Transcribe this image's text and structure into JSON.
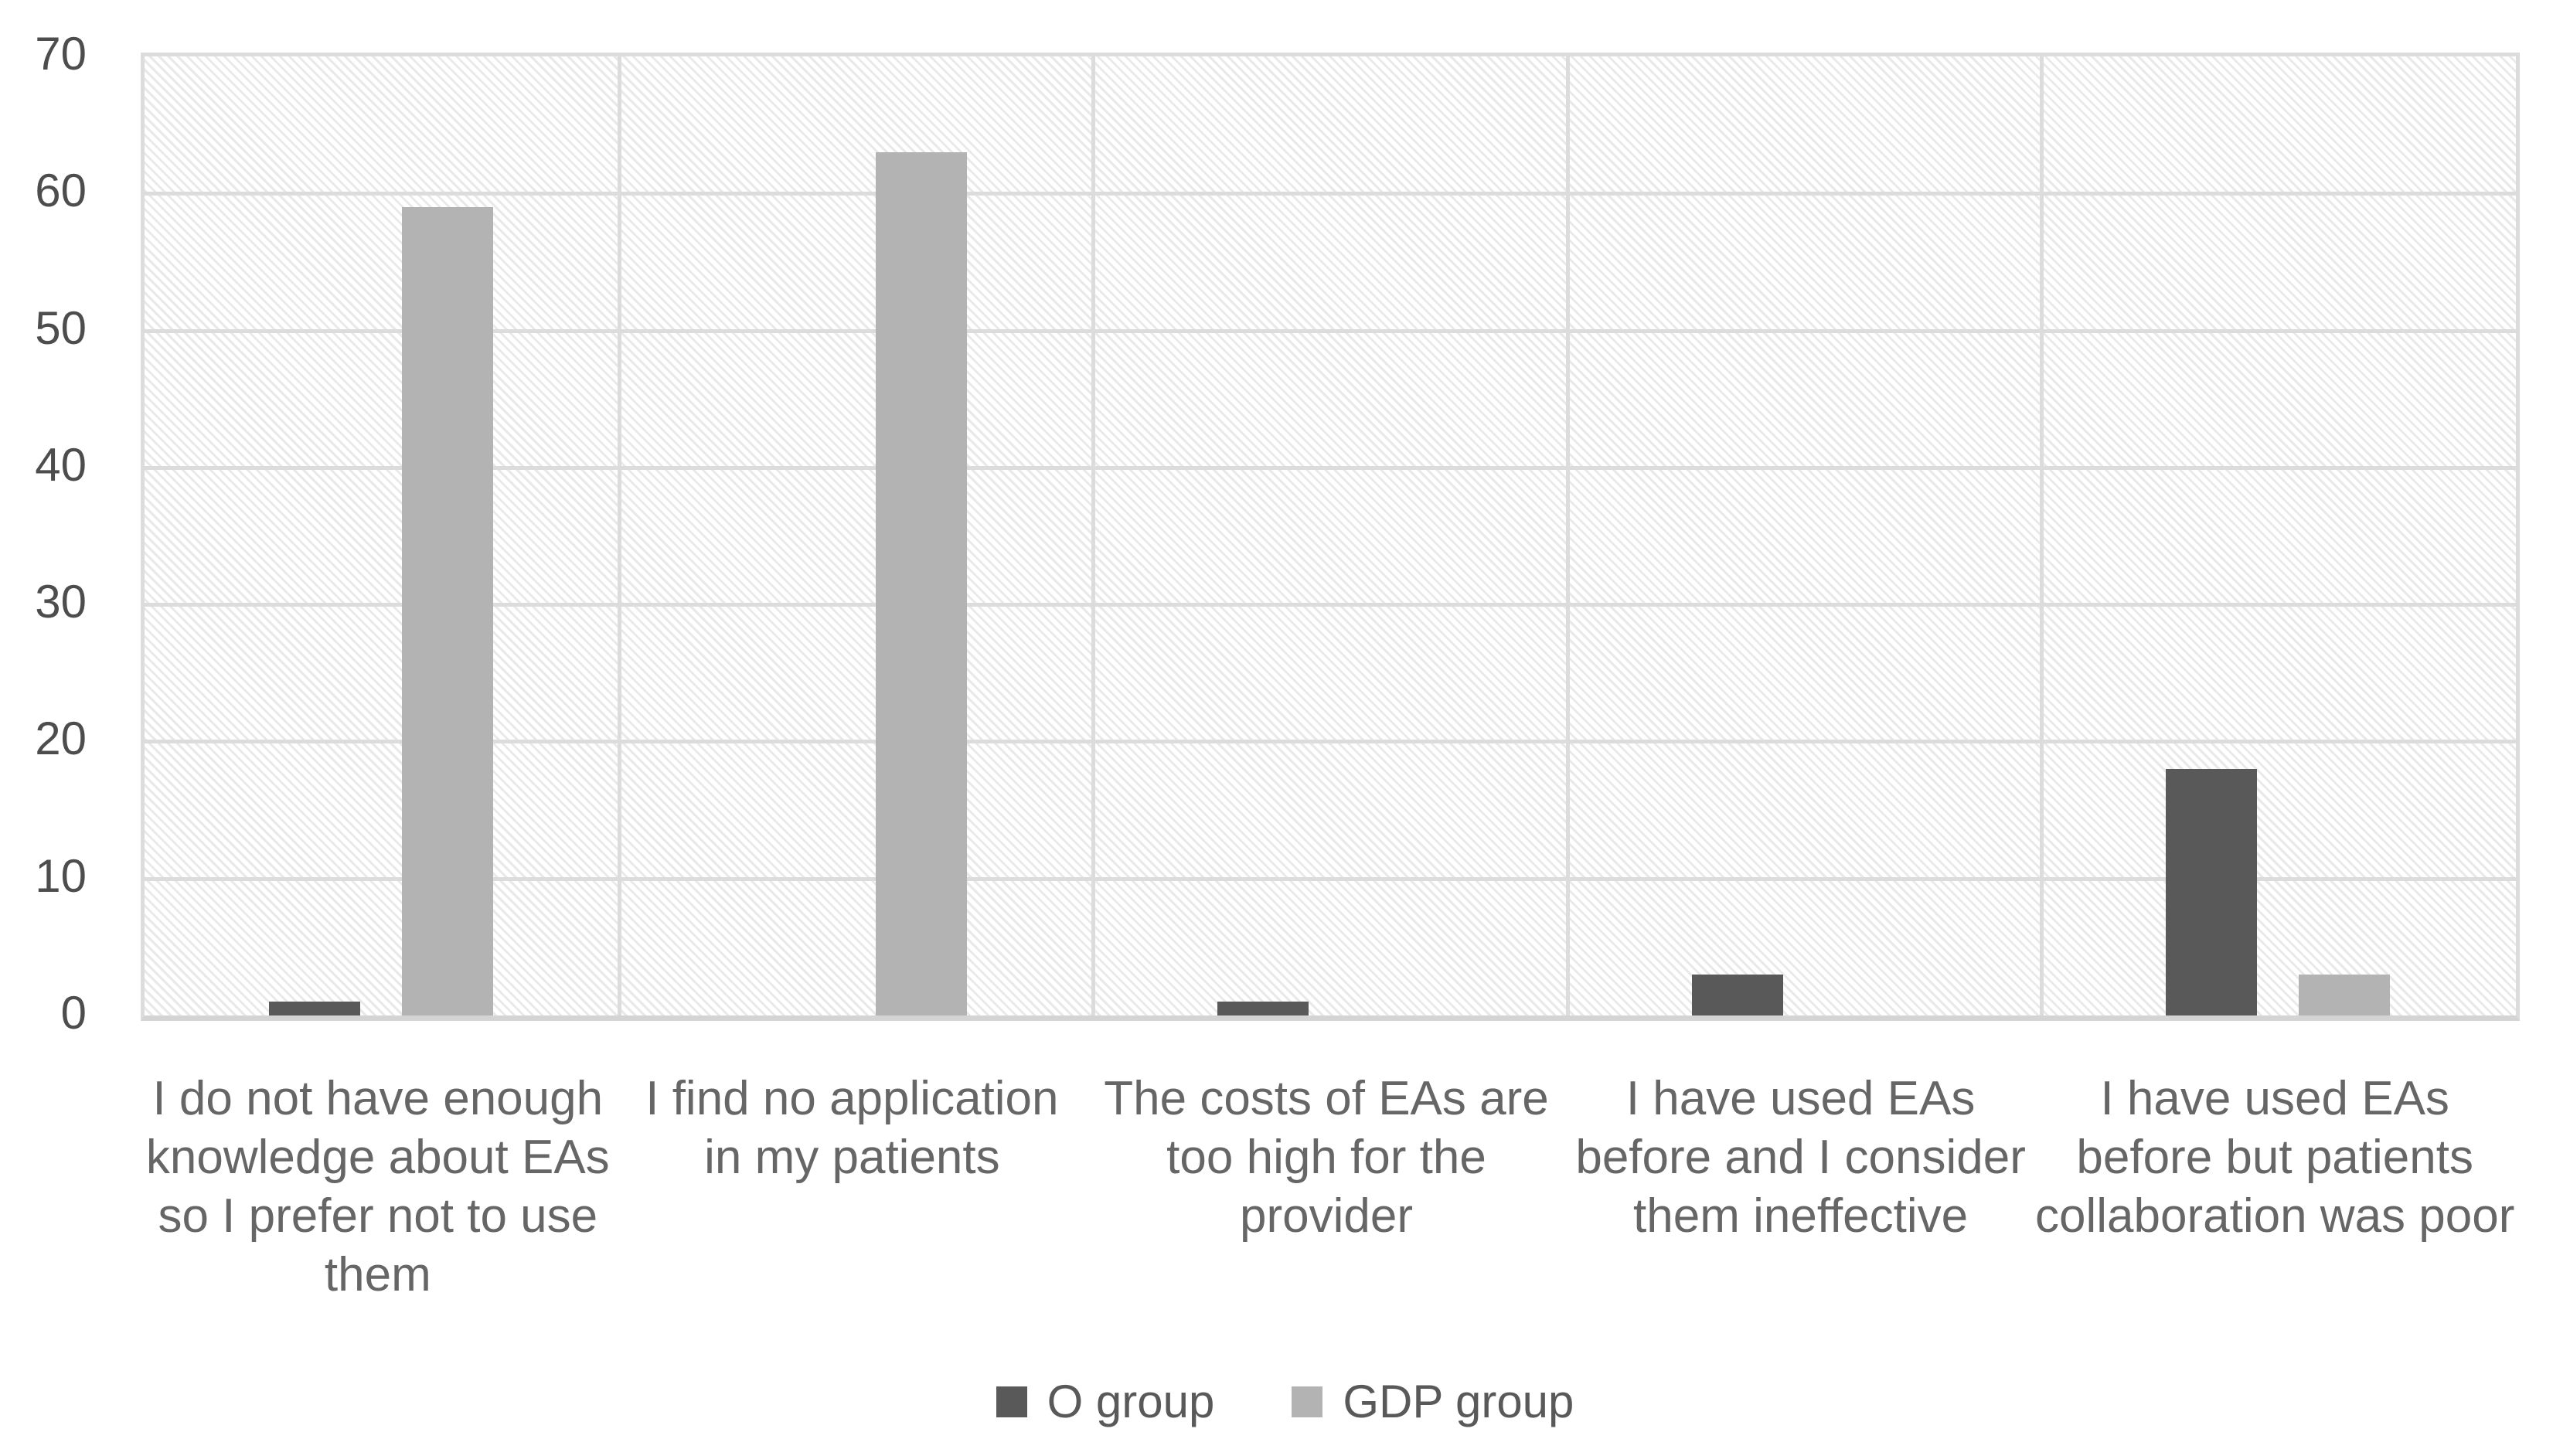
{
  "chart_data": {
    "type": "bar",
    "categories": [
      "I do not have enough\nknowledge about EAs\nso I prefer not to use\nthem",
      "I find no application\nin my patients",
      "The costs of EAs are\ntoo high for the\nprovider",
      "I have used EAs\nbefore and I consider\nthem ineffective",
      "I have used EAs\nbefore but patients\ncollaboration was poor"
    ],
    "series": [
      {
        "name": "O group",
        "color": "#595959",
        "values": [
          1,
          0,
          1,
          3,
          18
        ]
      },
      {
        "name": "GDP group",
        "color": "#b3b3b3",
        "values": [
          59,
          63,
          0,
          0,
          3
        ]
      }
    ],
    "xlabel": "",
    "ylabel": "",
    "ylim": [
      0,
      70
    ],
    "yticks": [
      0,
      10,
      20,
      30,
      40,
      50,
      60,
      70
    ],
    "grid": {
      "horizontal_gridlines": true,
      "vertical_category_dividers": true
    },
    "legend_position": "bottom-center",
    "plot_style": {
      "hatch_pattern": "light-downward-diagonal",
      "gridline_color": "#dcdcdc",
      "axis_line_color": "#d4d4d4",
      "tick_label_color": "#4d4d4d",
      "category_label_color": "#666666"
    }
  }
}
